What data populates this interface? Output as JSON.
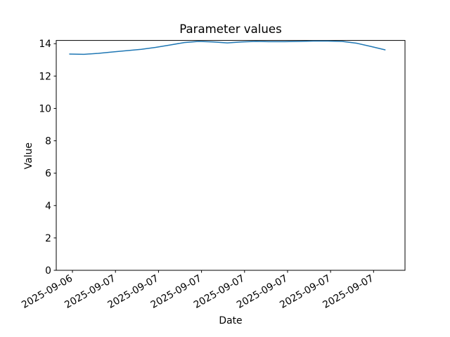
{
  "figure": {
    "background": "#ffffff"
  },
  "chart_data": {
    "type": "line",
    "title": "Parameter values",
    "xlabel": "Date",
    "ylabel": "Value",
    "grid": false,
    "legend": "none",
    "x_tick_labels": [
      "2025-09-06",
      "2025-09-07",
      "2025-09-07",
      "2025-09-07",
      "2025-09-07",
      "2025-09-07",
      "2025-09-07",
      "2025-09-07"
    ],
    "x_tick_positions_hours": [
      0.2,
      3.2,
      6.2,
      9.2,
      12.2,
      15.2,
      18.2,
      21.2
    ],
    "x_tick_rotation_deg": 30,
    "y_tick_labels": [
      "0",
      "2",
      "4",
      "6",
      "8",
      "10",
      "12",
      "14"
    ],
    "y_tick_values": [
      0,
      2,
      4,
      6,
      8,
      10,
      12,
      14
    ],
    "xlim_hours": [
      -0.93,
      23.39
    ],
    "ylim": [
      0,
      14.2
    ],
    "axis_color": "#000000",
    "text_color": "#000000",
    "series": [
      {
        "name": "Parameter values",
        "color": "#1f77b4",
        "x_hours": [
          0,
          1,
          2,
          3,
          4,
          5,
          6,
          7,
          8,
          9,
          10,
          11,
          12,
          13,
          14,
          15,
          16,
          17,
          18,
          19,
          20,
          21,
          22
        ],
        "values": [
          13.36,
          13.34,
          13.4,
          13.49,
          13.57,
          13.65,
          13.77,
          13.92,
          14.07,
          14.14,
          14.11,
          14.05,
          14.11,
          14.14,
          14.12,
          14.12,
          14.14,
          14.16,
          14.16,
          14.14,
          14.03,
          13.83,
          13.62
        ]
      }
    ]
  }
}
